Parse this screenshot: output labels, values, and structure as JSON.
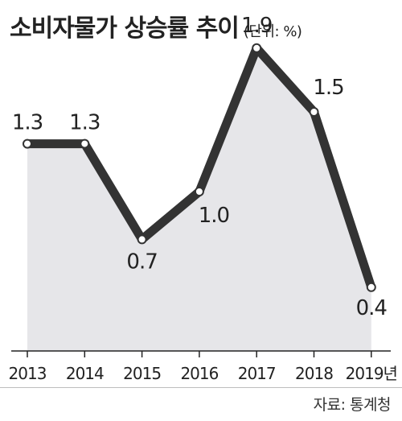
{
  "title": "소비자물가 상승률 추이",
  "unit_label": "(단위: %)",
  "source": "자료: 통계청",
  "colors": {
    "line": "#333333",
    "area": "#e6e6e9",
    "baseline": "#222222",
    "marker_fill": "#ffffff",
    "text": "#222222"
  },
  "chart_data": {
    "type": "area",
    "categories": [
      "2013",
      "2014",
      "2015",
      "2016",
      "2017",
      "2018",
      "2019년"
    ],
    "values": [
      1.3,
      1.3,
      0.7,
      1.0,
      1.9,
      1.5,
      0.4
    ],
    "data_labels": [
      "1.3",
      "1.3",
      "0.7",
      "1.0",
      "1.9",
      "1.5",
      "0.4"
    ],
    "ylim": [
      0,
      2.0
    ],
    "xlabel": "",
    "ylabel": "",
    "grid": false,
    "legend": "none"
  }
}
